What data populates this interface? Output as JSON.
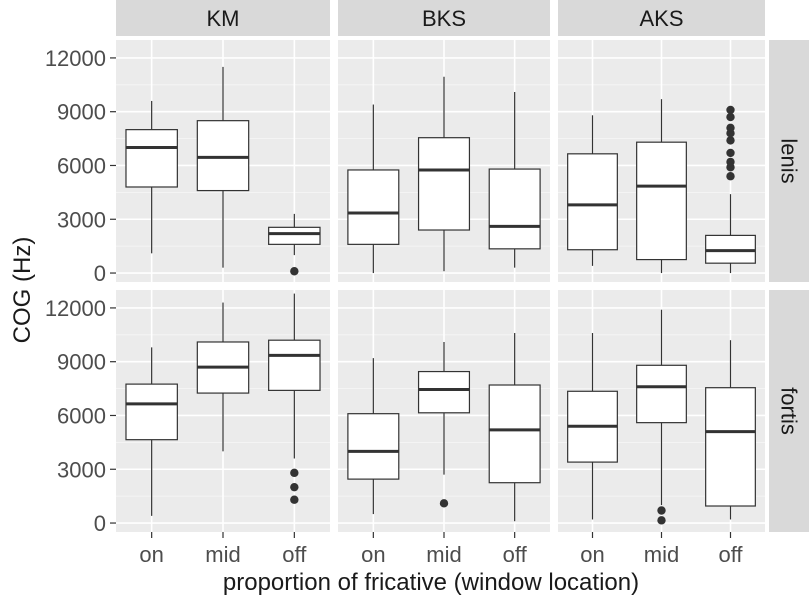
{
  "chart_data": {
    "type": "boxplot",
    "facet_columns": [
      "KM",
      "BKS",
      "AKS"
    ],
    "facet_rows": [
      "lenis",
      "fortis"
    ],
    "categories": [
      "on",
      "mid",
      "off"
    ],
    "xlabel": "proportion of fricative (window location)",
    "ylabel": "COG (Hz)",
    "ylim": [
      -500,
      13000
    ],
    "yticks": [
      0,
      3000,
      6000,
      9000,
      12000
    ],
    "ytick_labels": [
      "0",
      "3000",
      "6000",
      "9000",
      "12000"
    ],
    "grid": true,
    "panels": [
      {
        "row": "lenis",
        "col": "KM",
        "boxes": [
          {
            "category": "on",
            "lower": 1100,
            "q1": 4800,
            "median": 7000,
            "q3": 8000,
            "upper": 9600,
            "outliers": []
          },
          {
            "category": "mid",
            "lower": 300,
            "q1": 4600,
            "median": 6450,
            "q3": 8500,
            "upper": 11500,
            "outliers": []
          },
          {
            "category": "off",
            "lower": 1000,
            "q1": 1600,
            "median": 2200,
            "q3": 2550,
            "upper": 3300,
            "outliers": [
              100
            ]
          }
        ]
      },
      {
        "row": "lenis",
        "col": "BKS",
        "boxes": [
          {
            "category": "on",
            "lower": 0,
            "q1": 1600,
            "median": 3350,
            "q3": 5750,
            "upper": 9400,
            "outliers": []
          },
          {
            "category": "mid",
            "lower": 100,
            "q1": 2400,
            "median": 5750,
            "q3": 7550,
            "upper": 10950,
            "outliers": []
          },
          {
            "category": "off",
            "lower": 300,
            "q1": 1350,
            "median": 2600,
            "q3": 5800,
            "upper": 10100,
            "outliers": []
          }
        ]
      },
      {
        "row": "lenis",
        "col": "AKS",
        "boxes": [
          {
            "category": "on",
            "lower": 400,
            "q1": 1300,
            "median": 3800,
            "q3": 6650,
            "upper": 8800,
            "outliers": []
          },
          {
            "category": "mid",
            "lower": 0,
            "q1": 750,
            "median": 4850,
            "q3": 7300,
            "upper": 9700,
            "outliers": []
          },
          {
            "category": "off",
            "lower": 0,
            "q1": 550,
            "median": 1250,
            "q3": 2100,
            "upper": 4400,
            "outliers": [
              5400,
              5900,
              6200,
              6700,
              7400,
              7800,
              8100,
              8700,
              9100
            ]
          }
        ]
      },
      {
        "row": "fortis",
        "col": "KM",
        "boxes": [
          {
            "category": "on",
            "lower": 400,
            "q1": 4650,
            "median": 6650,
            "q3": 7750,
            "upper": 9800,
            "outliers": []
          },
          {
            "category": "mid",
            "lower": 4000,
            "q1": 7250,
            "median": 8700,
            "q3": 10100,
            "upper": 12300,
            "outliers": []
          },
          {
            "category": "off",
            "lower": 3600,
            "q1": 7400,
            "median": 9350,
            "q3": 10200,
            "upper": 12800,
            "outliers": [
              1300,
              2000,
              2800
            ]
          }
        ]
      },
      {
        "row": "fortis",
        "col": "BKS",
        "boxes": [
          {
            "category": "on",
            "lower": 500,
            "q1": 2450,
            "median": 4000,
            "q3": 6100,
            "upper": 9200,
            "outliers": []
          },
          {
            "category": "mid",
            "lower": 2700,
            "q1": 6150,
            "median": 7450,
            "q3": 8450,
            "upper": 10100,
            "outliers": [
              1100
            ]
          },
          {
            "category": "off",
            "lower": 100,
            "q1": 2250,
            "median": 5200,
            "q3": 7700,
            "upper": 10600,
            "outliers": []
          }
        ]
      },
      {
        "row": "fortis",
        "col": "AKS",
        "boxes": [
          {
            "category": "on",
            "lower": 200,
            "q1": 3400,
            "median": 5400,
            "q3": 7350,
            "upper": 10600,
            "outliers": []
          },
          {
            "category": "mid",
            "lower": 1000,
            "q1": 5600,
            "median": 7600,
            "q3": 8800,
            "upper": 11900,
            "outliers": [
              150,
              700
            ]
          },
          {
            "category": "off",
            "lower": 200,
            "q1": 950,
            "median": 5100,
            "q3": 7550,
            "upper": 10200,
            "outliers": []
          }
        ]
      }
    ]
  },
  "colors": {
    "panel_background": "#ebebeb",
    "grid_major": "#ffffff",
    "strip_background": "#d9d9d9",
    "box_fill": "#ffffff",
    "box_line": "#333333",
    "text": "#1a1a1a",
    "axis_text": "#4d4d4d"
  }
}
